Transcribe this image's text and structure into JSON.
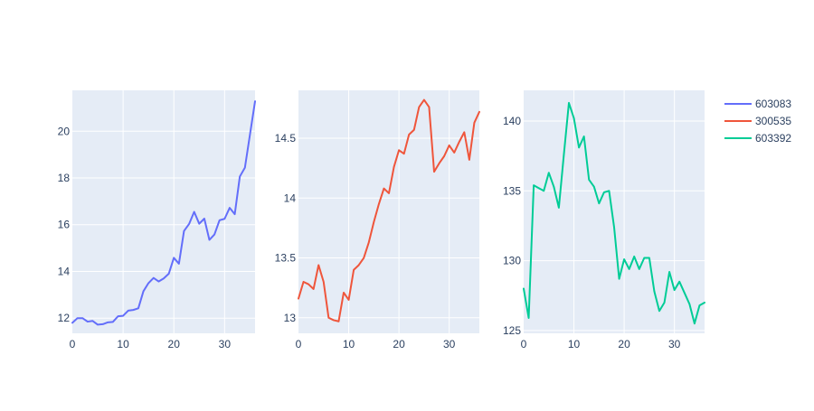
{
  "chart_data": [
    {
      "type": "line",
      "series": [
        {
          "name": "603083",
          "color": "#636efa",
          "x": [
            0,
            1,
            2,
            3,
            4,
            5,
            6,
            7,
            8,
            9,
            10,
            11,
            12,
            13,
            14,
            15,
            16,
            17,
            18,
            19,
            20,
            21,
            22,
            23,
            24,
            25,
            26,
            27,
            28,
            29,
            30,
            31,
            32,
            33,
            34,
            35,
            36
          ],
          "y": [
            11.8,
            12.0,
            12.0,
            11.85,
            11.88,
            11.72,
            11.74,
            11.82,
            11.84,
            12.08,
            12.1,
            12.32,
            12.35,
            12.42,
            13.15,
            13.5,
            13.72,
            13.57,
            13.7,
            13.9,
            14.58,
            14.33,
            15.73,
            16.03,
            16.55,
            16.04,
            16.26,
            15.35,
            15.58,
            16.19,
            16.25,
            16.72,
            16.45,
            18.06,
            18.44,
            19.86,
            21.28
          ]
        }
      ],
      "xlim": [
        0,
        36
      ],
      "ylim": [
        11.35,
        21.75
      ],
      "xticks": [
        0,
        10,
        20,
        30
      ],
      "yticks": [
        12,
        14,
        16,
        18,
        20
      ],
      "ytick_labels": [
        "12",
        "14",
        "16",
        "18",
        "20"
      ]
    },
    {
      "type": "line",
      "series": [
        {
          "name": "300535",
          "color": "#EF553B",
          "x": [
            0,
            1,
            2,
            3,
            4,
            5,
            6,
            7,
            8,
            9,
            10,
            11,
            12,
            13,
            14,
            15,
            16,
            17,
            18,
            19,
            20,
            21,
            22,
            23,
            24,
            25,
            26,
            27,
            28,
            29,
            30,
            31,
            32,
            33,
            34,
            35,
            36
          ],
          "y": [
            13.16,
            13.3,
            13.28,
            13.24,
            13.44,
            13.3,
            13.0,
            12.98,
            12.97,
            13.21,
            13.15,
            13.4,
            13.44,
            13.5,
            13.63,
            13.8,
            13.95,
            14.08,
            14.04,
            14.26,
            14.4,
            14.37,
            14.53,
            14.57,
            14.76,
            14.82,
            14.76,
            14.22,
            14.29,
            14.35,
            14.44,
            14.38,
            14.47,
            14.55,
            14.32,
            14.63,
            14.72
          ]
        }
      ],
      "xlim": [
        0,
        36
      ],
      "ylim": [
        12.87,
        14.9
      ],
      "xticks": [
        0,
        10,
        20,
        30
      ],
      "yticks": [
        13,
        13.5,
        14,
        14.5
      ],
      "ytick_labels": [
        "13",
        "13.5",
        "14",
        "14.5"
      ]
    },
    {
      "type": "line",
      "series": [
        {
          "name": "603392",
          "color": "#00cc96",
          "x": [
            0,
            1,
            2,
            3,
            4,
            5,
            6,
            7,
            8,
            9,
            10,
            11,
            12,
            13,
            14,
            15,
            16,
            17,
            18,
            19,
            20,
            21,
            22,
            23,
            24,
            25,
            26,
            27,
            28,
            29,
            30,
            31,
            32,
            33,
            34,
            35,
            36
          ],
          "y": [
            128.0,
            125.9,
            135.4,
            135.2,
            135.0,
            136.3,
            135.3,
            133.8,
            137.6,
            141.3,
            140.2,
            138.1,
            138.9,
            135.8,
            135.3,
            134.1,
            134.9,
            135.0,
            132.4,
            128.7,
            130.1,
            129.4,
            130.3,
            129.4,
            130.2,
            130.2,
            127.8,
            126.4,
            127.0,
            129.2,
            127.9,
            128.5,
            127.7,
            126.9,
            125.5,
            126.8,
            127.0
          ]
        }
      ],
      "xlim": [
        0,
        36
      ],
      "ylim": [
        124.8,
        142.2
      ],
      "xticks": [
        0,
        10,
        20,
        30
      ],
      "yticks": [
        125,
        130,
        135,
        140
      ],
      "ytick_labels": [
        "125",
        "130",
        "135",
        "140"
      ]
    }
  ],
  "legend": {
    "placement": "top-right",
    "items": [
      {
        "name": "603083",
        "color": "#636efa"
      },
      {
        "name": "300535",
        "color": "#EF553B"
      },
      {
        "name": "603392",
        "color": "#00cc96"
      }
    ]
  },
  "style": {
    "plot_bg": "#e5ecf6",
    "grid_color": "#ffffff",
    "text_color": "#2a3f5f"
  }
}
